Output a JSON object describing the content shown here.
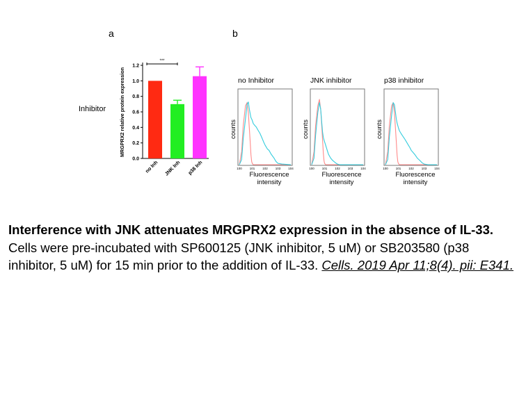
{
  "panels": {
    "a": {
      "letter": "a",
      "side_label": "Inhibitor"
    },
    "b": {
      "letter": "b"
    }
  },
  "chart_data": [
    {
      "type": "bar",
      "panel": "a",
      "ylabel": "MRGPRX2 relative protein expression",
      "ylim": [
        0,
        1.2
      ],
      "yticks": [
        "0.0",
        "0.2",
        "0.4",
        "0.6",
        "0.8",
        "1.0",
        "1.2"
      ],
      "categories": [
        "no Inh",
        "JNK Inh",
        "p38 Inh"
      ],
      "values": [
        1.0,
        0.7,
        1.06
      ],
      "errors": [
        0,
        0.05,
        0.12
      ],
      "colors": [
        "#ff2a12",
        "#22ee22",
        "#ff33ff"
      ],
      "significance": {
        "between": [
          "no Inh",
          "JNK Inh"
        ],
        "label": "***"
      }
    },
    {
      "type": "line",
      "panel": "b",
      "title": "no Inhibitor",
      "xlabel": "Fluorescence intensity",
      "ylabel": "counts",
      "x_scale": "log",
      "x": [
        1,
        1.5,
        2,
        3,
        4,
        5,
        6,
        7,
        8,
        9,
        10,
        12,
        16,
        20,
        30,
        40,
        60,
        80,
        100,
        150,
        200,
        300,
        500,
        700,
        1000,
        2000,
        10000
      ],
      "series": [
        {
          "color": "#ff8a8a",
          "values": [
            0,
            20,
            60,
            90,
            95,
            80,
            55,
            35,
            15,
            5,
            2,
            0,
            0,
            0,
            0,
            0,
            0,
            0,
            0,
            0,
            0,
            0,
            0,
            0,
            0,
            0,
            0
          ]
        },
        {
          "color": "#33ccdd",
          "values": [
            0,
            8,
            40,
            70,
            92,
            96,
            85,
            78,
            72,
            70,
            68,
            63,
            60,
            58,
            52,
            48,
            40,
            34,
            30,
            24,
            22,
            16,
            10,
            5,
            2,
            1,
            0
          ]
        }
      ]
    },
    {
      "type": "line",
      "panel": "b",
      "title": "JNK inhibitor",
      "xlabel": "Fluorescence intensity",
      "ylabel": "counts",
      "x_scale": "log",
      "x": [
        1,
        1.5,
        2,
        3,
        4,
        5,
        6,
        7,
        8,
        9,
        10,
        12,
        16,
        20,
        30,
        40,
        60,
        80,
        100,
        150,
        200,
        300,
        500,
        700,
        1000,
        2000,
        10000
      ],
      "series": [
        {
          "color": "#ff8a8a",
          "values": [
            0,
            20,
            60,
            90,
            100,
            85,
            60,
            38,
            18,
            6,
            2,
            0,
            0,
            0,
            0,
            0,
            0,
            0,
            0,
            0,
            0,
            0,
            0,
            0,
            0,
            0,
            0
          ]
        },
        {
          "color": "#33ccdd",
          "values": [
            0,
            10,
            45,
            80,
            95,
            85,
            65,
            50,
            42,
            38,
            35,
            30,
            22,
            16,
            10,
            7,
            4,
            2,
            1,
            0,
            0,
            0,
            0,
            0,
            0,
            0,
            0
          ]
        }
      ]
    },
    {
      "type": "line",
      "panel": "b",
      "title": "p38 inhibitor",
      "xlabel": "Fluorescence intensity",
      "ylabel": "counts",
      "x_scale": "log",
      "x": [
        1,
        1.5,
        2,
        3,
        4,
        5,
        6,
        7,
        8,
        9,
        10,
        12,
        16,
        20,
        30,
        40,
        60,
        80,
        100,
        150,
        200,
        300,
        500,
        700,
        1000,
        2000,
        10000
      ],
      "series": [
        {
          "color": "#ff8a8a",
          "values": [
            0,
            20,
            60,
            90,
            95,
            80,
            55,
            35,
            15,
            5,
            2,
            0,
            0,
            0,
            0,
            0,
            0,
            0,
            0,
            0,
            0,
            0,
            0,
            0,
            0,
            0,
            0
          ]
        },
        {
          "color": "#33ccdd",
          "values": [
            0,
            8,
            42,
            75,
            95,
            92,
            80,
            70,
            64,
            60,
            57,
            52,
            48,
            45,
            40,
            36,
            30,
            26,
            22,
            18,
            15,
            10,
            6,
            3,
            1,
            0,
            0
          ]
        }
      ]
    }
  ],
  "caption": {
    "title": "Interference with JNK attenuates MRGPRX2 expression in the absence of IL-33.",
    "body": "Cells were pre-incubated with SP600125 (JNK inhibitor, 5 uM) or SB203580 (p38 inhibitor, 5 uM) for 15 min prior to the addition of IL-33. ",
    "citation": "Cells. 2019 Apr 11;8(4). pii: E341. "
  }
}
